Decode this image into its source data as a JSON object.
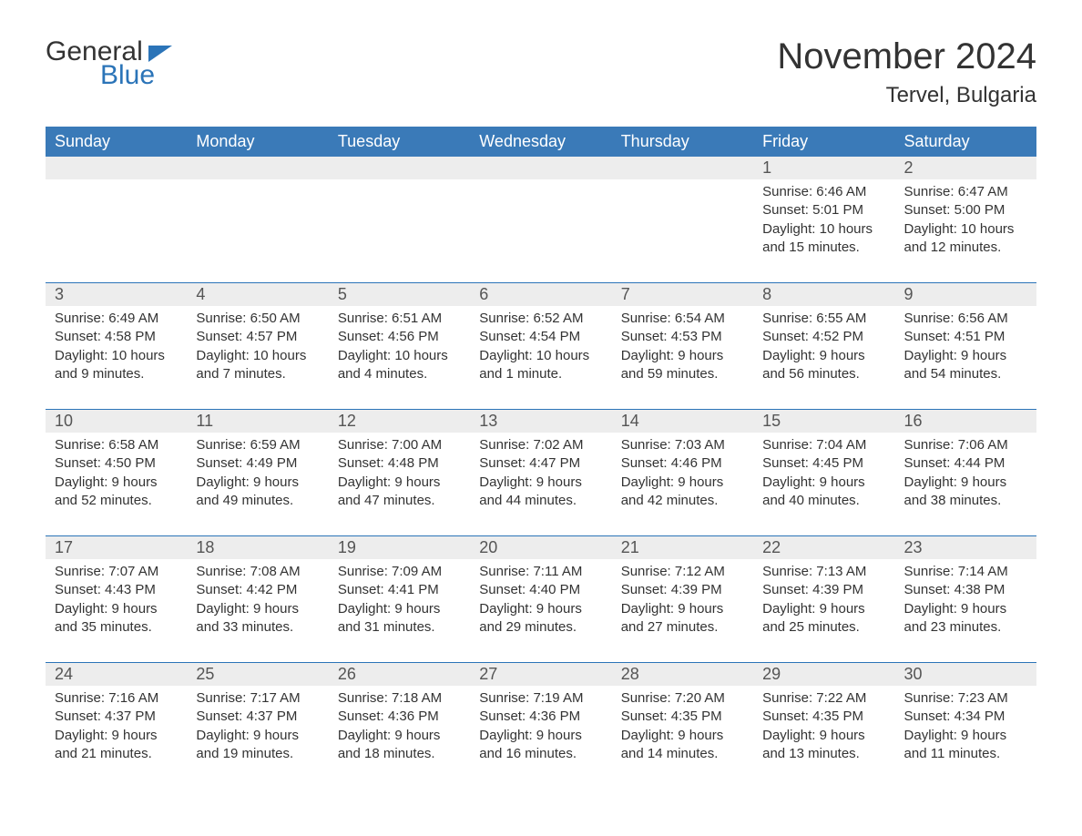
{
  "logo": {
    "text1": "General",
    "text2": "Blue"
  },
  "title": "November 2024",
  "location": "Tervel, Bulgaria",
  "colors": {
    "header_bg": "#3a7ab8",
    "header_text": "#ffffff",
    "rule": "#2b74b8",
    "daynum_bg": "#ededed",
    "text": "#333333",
    "logo_blue": "#2b74b8"
  },
  "daynames": [
    "Sunday",
    "Monday",
    "Tuesday",
    "Wednesday",
    "Thursday",
    "Friday",
    "Saturday"
  ],
  "weeks": [
    [
      null,
      null,
      null,
      null,
      null,
      {
        "n": "1",
        "sunrise": "6:46 AM",
        "sunset": "5:01 PM",
        "daylight": "10 hours and 15 minutes."
      },
      {
        "n": "2",
        "sunrise": "6:47 AM",
        "sunset": "5:00 PM",
        "daylight": "10 hours and 12 minutes."
      }
    ],
    [
      {
        "n": "3",
        "sunrise": "6:49 AM",
        "sunset": "4:58 PM",
        "daylight": "10 hours and 9 minutes."
      },
      {
        "n": "4",
        "sunrise": "6:50 AM",
        "sunset": "4:57 PM",
        "daylight": "10 hours and 7 minutes."
      },
      {
        "n": "5",
        "sunrise": "6:51 AM",
        "sunset": "4:56 PM",
        "daylight": "10 hours and 4 minutes."
      },
      {
        "n": "6",
        "sunrise": "6:52 AM",
        "sunset": "4:54 PM",
        "daylight": "10 hours and 1 minute."
      },
      {
        "n": "7",
        "sunrise": "6:54 AM",
        "sunset": "4:53 PM",
        "daylight": "9 hours and 59 minutes."
      },
      {
        "n": "8",
        "sunrise": "6:55 AM",
        "sunset": "4:52 PM",
        "daylight": "9 hours and 56 minutes."
      },
      {
        "n": "9",
        "sunrise": "6:56 AM",
        "sunset": "4:51 PM",
        "daylight": "9 hours and 54 minutes."
      }
    ],
    [
      {
        "n": "10",
        "sunrise": "6:58 AM",
        "sunset": "4:50 PM",
        "daylight": "9 hours and 52 minutes."
      },
      {
        "n": "11",
        "sunrise": "6:59 AM",
        "sunset": "4:49 PM",
        "daylight": "9 hours and 49 minutes."
      },
      {
        "n": "12",
        "sunrise": "7:00 AM",
        "sunset": "4:48 PM",
        "daylight": "9 hours and 47 minutes."
      },
      {
        "n": "13",
        "sunrise": "7:02 AM",
        "sunset": "4:47 PM",
        "daylight": "9 hours and 44 minutes."
      },
      {
        "n": "14",
        "sunrise": "7:03 AM",
        "sunset": "4:46 PM",
        "daylight": "9 hours and 42 minutes."
      },
      {
        "n": "15",
        "sunrise": "7:04 AM",
        "sunset": "4:45 PM",
        "daylight": "9 hours and 40 minutes."
      },
      {
        "n": "16",
        "sunrise": "7:06 AM",
        "sunset": "4:44 PM",
        "daylight": "9 hours and 38 minutes."
      }
    ],
    [
      {
        "n": "17",
        "sunrise": "7:07 AM",
        "sunset": "4:43 PM",
        "daylight": "9 hours and 35 minutes."
      },
      {
        "n": "18",
        "sunrise": "7:08 AM",
        "sunset": "4:42 PM",
        "daylight": "9 hours and 33 minutes."
      },
      {
        "n": "19",
        "sunrise": "7:09 AM",
        "sunset": "4:41 PM",
        "daylight": "9 hours and 31 minutes."
      },
      {
        "n": "20",
        "sunrise": "7:11 AM",
        "sunset": "4:40 PM",
        "daylight": "9 hours and 29 minutes."
      },
      {
        "n": "21",
        "sunrise": "7:12 AM",
        "sunset": "4:39 PM",
        "daylight": "9 hours and 27 minutes."
      },
      {
        "n": "22",
        "sunrise": "7:13 AM",
        "sunset": "4:39 PM",
        "daylight": "9 hours and 25 minutes."
      },
      {
        "n": "23",
        "sunrise": "7:14 AM",
        "sunset": "4:38 PM",
        "daylight": "9 hours and 23 minutes."
      }
    ],
    [
      {
        "n": "24",
        "sunrise": "7:16 AM",
        "sunset": "4:37 PM",
        "daylight": "9 hours and 21 minutes."
      },
      {
        "n": "25",
        "sunrise": "7:17 AM",
        "sunset": "4:37 PM",
        "daylight": "9 hours and 19 minutes."
      },
      {
        "n": "26",
        "sunrise": "7:18 AM",
        "sunset": "4:36 PM",
        "daylight": "9 hours and 18 minutes."
      },
      {
        "n": "27",
        "sunrise": "7:19 AM",
        "sunset": "4:36 PM",
        "daylight": "9 hours and 16 minutes."
      },
      {
        "n": "28",
        "sunrise": "7:20 AM",
        "sunset": "4:35 PM",
        "daylight": "9 hours and 14 minutes."
      },
      {
        "n": "29",
        "sunrise": "7:22 AM",
        "sunset": "4:35 PM",
        "daylight": "9 hours and 13 minutes."
      },
      {
        "n": "30",
        "sunrise": "7:23 AM",
        "sunset": "4:34 PM",
        "daylight": "9 hours and 11 minutes."
      }
    ]
  ],
  "labels": {
    "sunrise": "Sunrise: ",
    "sunset": "Sunset: ",
    "daylight": "Daylight: "
  }
}
